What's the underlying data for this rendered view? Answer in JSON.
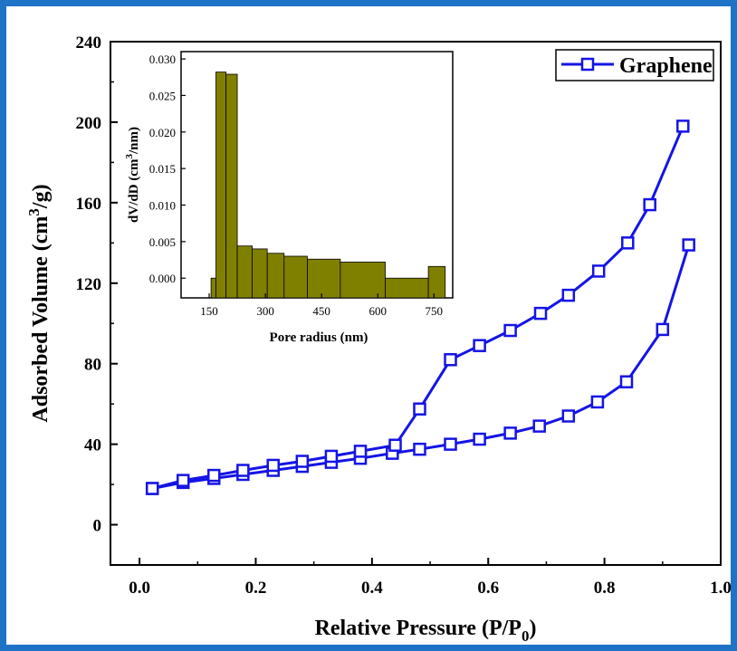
{
  "chart_data": [
    {
      "type": "line",
      "xlabel": "Relative Pressure (P/P",
      "xlabel_sub": "0",
      "xlabel_end": ")",
      "ylabel": "Adsorbed Volume (cm",
      "ylabel_sup": "3",
      "ylabel_end": "/g)",
      "xlim": [
        -0.05,
        1.0
      ],
      "ylim": [
        -20,
        240
      ],
      "xticks": [
        "0.0",
        "0.2",
        "0.4",
        "0.6",
        "0.8",
        "1.0"
      ],
      "yticks": [
        "0",
        "40",
        "80",
        "120",
        "160",
        "200",
        "240"
      ],
      "grid": false,
      "legend_position": "top-right",
      "series": [
        {
          "name": "Graphene",
          "color": "#1414e6",
          "marker": "open-square",
          "adsorption": [
            [
              0.022,
              18
            ],
            [
              0.075,
              21
            ],
            [
              0.128,
              23
            ],
            [
              0.178,
              25
            ],
            [
              0.23,
              27
            ],
            [
              0.28,
              29
            ],
            [
              0.33,
              31
            ],
            [
              0.38,
              33
            ],
            [
              0.435,
              35.5
            ],
            [
              0.482,
              37.5
            ],
            [
              0.535,
              40
            ],
            [
              0.585,
              42.5
            ],
            [
              0.638,
              45.5
            ],
            [
              0.688,
              49
            ],
            [
              0.738,
              54
            ],
            [
              0.788,
              61
            ],
            [
              0.838,
              71
            ],
            [
              0.9,
              97
            ],
            [
              0.945,
              139
            ]
          ],
          "desorption": [
            [
              0.935,
              198
            ],
            [
              0.878,
              159
            ],
            [
              0.84,
              140
            ],
            [
              0.79,
              126
            ],
            [
              0.738,
              114
            ],
            [
              0.69,
              105
            ],
            [
              0.638,
              96.5
            ],
            [
              0.585,
              89
            ],
            [
              0.535,
              82
            ],
            [
              0.482,
              57.5
            ],
            [
              0.44,
              39.5
            ],
            [
              0.38,
              36.5
            ],
            [
              0.33,
              34
            ],
            [
              0.28,
              31.5
            ],
            [
              0.23,
              29.5
            ],
            [
              0.178,
              27
            ],
            [
              0.128,
              24.5
            ],
            [
              0.075,
              22
            ],
            [
              0.022,
              18
            ]
          ]
        }
      ]
    },
    {
      "type": "bar",
      "xlabel": "Pore radius (nm)",
      "ylabel": "dV/dD (cm",
      "ylabel_sup": "3",
      "ylabel_end": "/nm)",
      "xlim": [
        75,
        800
      ],
      "ylim": [
        -0.0027,
        0.031
      ],
      "xticks": [
        "150",
        "300",
        "450",
        "600",
        "750"
      ],
      "yticks": [
        "0.000",
        "0.005",
        "0.010",
        "0.015",
        "0.020",
        "0.025",
        "0.030"
      ],
      "bar_color": "#808000",
      "bars": [
        {
          "x_start": 155,
          "x_end": 168,
          "value": 0.0
        },
        {
          "x_start": 168,
          "x_end": 195,
          "value": 0.0282
        },
        {
          "x_start": 195,
          "x_end": 225,
          "value": 0.0279
        },
        {
          "x_start": 225,
          "x_end": 265,
          "value": 0.0044
        },
        {
          "x_start": 265,
          "x_end": 305,
          "value": 0.004
        },
        {
          "x_start": 305,
          "x_end": 350,
          "value": 0.0034
        },
        {
          "x_start": 350,
          "x_end": 412,
          "value": 0.003
        },
        {
          "x_start": 412,
          "x_end": 500,
          "value": 0.0026
        },
        {
          "x_start": 500,
          "x_end": 620,
          "value": 0.0022
        },
        {
          "x_start": 620,
          "x_end": 735,
          "value": 0.0
        },
        {
          "x_start": 735,
          "x_end": 780,
          "value": 0.0016
        }
      ]
    }
  ]
}
